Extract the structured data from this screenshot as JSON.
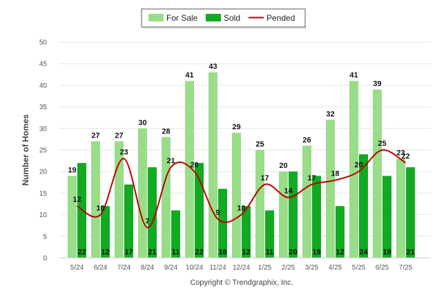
{
  "chart_data": {
    "type": "bar",
    "ylabel": "Number of Homes",
    "ylim": [
      0,
      50
    ],
    "yticks": [
      0,
      5,
      10,
      15,
      20,
      25,
      30,
      35,
      40,
      45,
      50
    ],
    "grid": true,
    "legend_position": "top-center",
    "categories": [
      "5/24",
      "6/24",
      "7/24",
      "8/24",
      "9/24",
      "10/24",
      "11/24",
      "12/24",
      "1/25",
      "2/25",
      "3/25",
      "4/25",
      "5/25",
      "6/25",
      "7/25"
    ],
    "series": [
      {
        "name": "For Sale",
        "kind": "bar",
        "color": "#99dd88",
        "values": [
          19,
          27,
          27,
          30,
          28,
          41,
          43,
          29,
          25,
          20,
          26,
          32,
          41,
          39,
          23
        ]
      },
      {
        "name": "Sold",
        "kind": "bar",
        "color": "#11aa22",
        "values": [
          22,
          12,
          17,
          21,
          11,
          22,
          16,
          12,
          11,
          20,
          19,
          12,
          24,
          19,
          21
        ]
      },
      {
        "name": "Pended",
        "kind": "line",
        "color": "#bb0000",
        "values": [
          12,
          10,
          23,
          7,
          21,
          20,
          9,
          10,
          17,
          14,
          17,
          18,
          20,
          25,
          22
        ]
      }
    ]
  },
  "footer": "Copyright © Trendgraphix, Inc."
}
